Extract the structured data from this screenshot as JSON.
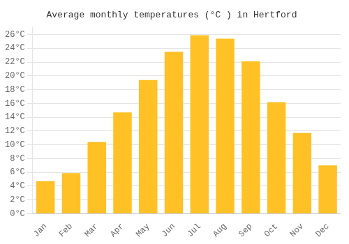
{
  "chart_data": {
    "type": "bar",
    "title": "Average monthly temperatures (°C ) in Hertford",
    "categories": [
      "Jan",
      "Feb",
      "Mar",
      "Apr",
      "May",
      "Jun",
      "Jul",
      "Aug",
      "Sep",
      "Oct",
      "Nov",
      "Dec"
    ],
    "values": [
      4.7,
      5.9,
      10.4,
      14.7,
      19.4,
      23.5,
      25.9,
      25.4,
      22.1,
      16.2,
      11.7,
      7.0
    ],
    "color": "#FFC125",
    "ylim": [
      0,
      27
    ],
    "yticks": [
      {
        "value": 0,
        "label": "0°C"
      },
      {
        "value": 2,
        "label": "2°C"
      },
      {
        "value": 4,
        "label": "4°C"
      },
      {
        "value": 6,
        "label": "6°C"
      },
      {
        "value": 8,
        "label": "8°C"
      },
      {
        "value": 10,
        "label": "10°C"
      },
      {
        "value": 12,
        "label": "12°C"
      },
      {
        "value": 14,
        "label": "14°C"
      },
      {
        "value": 16,
        "label": "16°C"
      },
      {
        "value": 18,
        "label": "18°C"
      },
      {
        "value": 20,
        "label": "20°C"
      },
      {
        "value": 22,
        "label": "22°C"
      },
      {
        "value": 24,
        "label": "24°C"
      },
      {
        "value": 26,
        "label": "26°C"
      }
    ],
    "grid": true
  }
}
